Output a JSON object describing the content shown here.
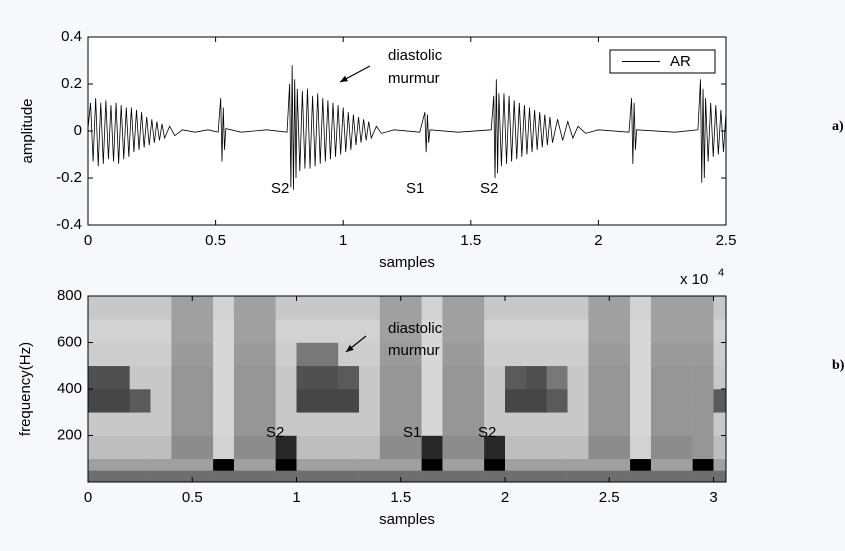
{
  "chart_data": [
    {
      "type": "line",
      "y_label": "amplitude",
      "x_label": "samples",
      "x_scale": {
        "base": "x 10",
        "exponent": "4"
      },
      "panel_label": "a)",
      "annotations": [
        "diastolic",
        "murmur",
        "S2",
        "S1",
        "S2"
      ],
      "legend": "upper right",
      "xlim": [
        0,
        2.5
      ],
      "xticks": [
        0,
        0.5,
        1,
        1.5,
        2,
        2.5
      ],
      "ylim": [
        -0.4,
        0.4
      ],
      "yticks": [
        -0.4,
        -0.2,
        0,
        0.2,
        0.4
      ],
      "x": [
        0,
        0.01,
        0.02,
        0.03,
        0.04,
        0.05,
        0.06,
        0.07,
        0.08,
        0.09,
        0.1,
        0.11,
        0.12,
        0.13,
        0.14,
        0.15,
        0.16,
        0.17,
        0.18,
        0.19,
        0.2,
        0.21,
        0.22,
        0.23,
        0.24,
        0.25,
        0.26,
        0.27,
        0.28,
        0.29,
        0.3,
        0.32,
        0.34,
        0.37,
        0.42,
        0.47,
        0.51,
        0.52,
        0.525,
        0.53,
        0.535,
        0.54,
        0.6,
        0.7,
        0.78,
        0.79,
        0.795,
        0.8,
        0.805,
        0.81,
        0.815,
        0.82,
        0.83,
        0.84,
        0.85,
        0.86,
        0.87,
        0.88,
        0.89,
        0.9,
        0.91,
        0.92,
        0.93,
        0.94,
        0.95,
        0.96,
        0.97,
        0.98,
        0.99,
        1.0,
        1.01,
        1.02,
        1.03,
        1.04,
        1.05,
        1.06,
        1.07,
        1.08,
        1.09,
        1.1,
        1.11,
        1.13,
        1.15,
        1.2,
        1.3,
        1.32,
        1.325,
        1.33,
        1.335,
        1.34,
        1.45,
        1.58,
        1.59,
        1.595,
        1.6,
        1.605,
        1.61,
        1.62,
        1.63,
        1.64,
        1.65,
        1.66,
        1.67,
        1.68,
        1.69,
        1.7,
        1.71,
        1.72,
        1.73,
        1.74,
        1.75,
        1.76,
        1.77,
        1.78,
        1.79,
        1.8,
        1.81,
        1.82,
        1.84,
        1.86,
        1.88,
        1.9,
        1.92,
        1.95,
        2.0,
        2.12,
        2.13,
        2.135,
        2.14,
        2.145,
        2.15,
        2.3,
        2.39,
        2.4,
        2.405,
        2.41,
        2.415,
        2.42,
        2.43,
        2.44,
        2.45,
        2.46,
        2.47,
        2.48,
        2.49,
        2.5
      ],
      "series": [
        {
          "name": "AR",
          "color": "#000000",
          "values": [
            0.01,
            0.12,
            -0.13,
            0.14,
            -0.15,
            0.12,
            -0.14,
            0.13,
            -0.12,
            0.11,
            -0.13,
            0.12,
            -0.14,
            0.11,
            -0.12,
            0.1,
            -0.11,
            0.1,
            -0.09,
            0.09,
            -0.08,
            0.08,
            -0.07,
            0.06,
            -0.06,
            0.05,
            -0.05,
            0.04,
            -0.04,
            0.03,
            -0.03,
            0.02,
            -0.02,
            0.005,
            -0.005,
            0.005,
            -0.005,
            0.14,
            -0.13,
            0.1,
            -0.08,
            0.01,
            -0.005,
            0.005,
            -0.005,
            0.2,
            -0.24,
            0.28,
            -0.25,
            0.22,
            -0.2,
            0.18,
            -0.17,
            0.17,
            -0.16,
            0.18,
            -0.16,
            0.15,
            -0.15,
            0.16,
            -0.14,
            0.14,
            -0.13,
            0.13,
            -0.12,
            0.12,
            -0.11,
            0.11,
            -0.1,
            0.1,
            -0.09,
            0.08,
            -0.08,
            0.07,
            -0.06,
            0.06,
            -0.05,
            0.05,
            -0.04,
            0.04,
            -0.03,
            0.02,
            -0.01,
            0.005,
            -0.005,
            0.08,
            -0.09,
            0.07,
            -0.05,
            0.005,
            -0.005,
            0.005,
            0.15,
            -0.2,
            0.22,
            -0.18,
            0.16,
            -0.15,
            0.16,
            -0.14,
            0.15,
            -0.13,
            0.13,
            -0.12,
            0.12,
            -0.11,
            0.11,
            -0.1,
            0.1,
            -0.09,
            0.09,
            -0.08,
            0.08,
            -0.07,
            0.07,
            -0.06,
            0.06,
            -0.05,
            0.05,
            -0.04,
            0.04,
            -0.03,
            0.02,
            -0.01,
            0.005,
            -0.005,
            0.14,
            -0.14,
            0.12,
            -0.08,
            0.005,
            -0.005,
            0.005,
            0.22,
            -0.22,
            0.18,
            -0.2,
            0.14,
            -0.13,
            0.12,
            -0.11,
            0.11,
            -0.1,
            0.09,
            -0.09,
            0.08
          ]
        }
      ]
    },
    {
      "type": "heatmap",
      "y_label": "frequency(Hz)",
      "x_label": "samples",
      "panel_label": "b)",
      "annotations": [
        "diastolic",
        "murmur",
        "S2",
        "S1",
        "S2"
      ],
      "colormap": "gray",
      "xlim": [
        0,
        3.06
      ],
      "xticks": [
        0,
        0.5,
        1,
        1.5,
        2,
        2.5,
        3
      ],
      "ylim": [
        0,
        800
      ],
      "yticks": [
        200,
        400,
        600,
        800
      ],
      "x_bins": [
        0,
        0.1,
        0.2,
        0.3,
        0.4,
        0.5,
        0.6,
        0.7,
        0.8,
        0.9,
        1.0,
        1.1,
        1.2,
        1.3,
        1.4,
        1.5,
        1.6,
        1.7,
        1.8,
        1.9,
        2.0,
        2.1,
        2.2,
        2.3,
        2.4,
        2.5,
        2.6,
        2.7,
        2.8,
        2.9,
        3.0,
        3.06
      ],
      "y_bins": [
        0,
        50,
        100,
        200,
        300,
        400,
        500,
        600,
        700,
        800
      ],
      "z": [
        [
          110,
          110,
          110,
          110,
          110,
          110,
          110,
          110,
          110,
          110,
          110,
          110,
          110,
          110,
          110,
          110,
          110,
          110,
          110,
          110,
          110,
          110,
          110,
          110,
          110,
          110,
          110,
          110,
          110,
          110,
          110
        ],
        [
          160,
          160,
          160,
          160,
          160,
          160,
          0,
          160,
          160,
          0,
          160,
          160,
          160,
          160,
          160,
          160,
          0,
          160,
          160,
          0,
          160,
          160,
          160,
          160,
          160,
          160,
          0,
          160,
          160,
          0,
          160
        ],
        [
          190,
          190,
          190,
          190,
          140,
          140,
          210,
          140,
          140,
          40,
          190,
          190,
          190,
          190,
          140,
          140,
          40,
          140,
          140,
          40,
          190,
          190,
          190,
          190,
          140,
          140,
          210,
          140,
          140,
          150,
          190
        ],
        [
          200,
          200,
          200,
          200,
          150,
          150,
          215,
          150,
          150,
          200,
          200,
          200,
          200,
          200,
          150,
          150,
          215,
          150,
          150,
          200,
          200,
          200,
          200,
          200,
          150,
          150,
          215,
          150,
          150,
          150,
          200
        ],
        [
          70,
          70,
          90,
          200,
          150,
          150,
          215,
          150,
          150,
          200,
          70,
          70,
          70,
          200,
          150,
          150,
          215,
          150,
          150,
          200,
          70,
          70,
          90,
          200,
          150,
          150,
          215,
          150,
          150,
          150,
          90
        ],
        [
          80,
          80,
          200,
          200,
          150,
          150,
          215,
          150,
          150,
          200,
          80,
          80,
          90,
          200,
          150,
          150,
          215,
          150,
          150,
          200,
          90,
          80,
          120,
          200,
          150,
          150,
          215,
          150,
          150,
          150,
          200
        ],
        [
          205,
          205,
          205,
          205,
          155,
          155,
          215,
          155,
          155,
          205,
          120,
          120,
          205,
          205,
          155,
          155,
          215,
          155,
          155,
          205,
          205,
          205,
          205,
          205,
          155,
          155,
          215,
          155,
          155,
          155,
          205
        ],
        [
          210,
          210,
          210,
          210,
          160,
          160,
          215,
          160,
          160,
          210,
          210,
          210,
          210,
          210,
          160,
          160,
          215,
          160,
          160,
          210,
          210,
          210,
          210,
          210,
          160,
          160,
          215,
          160,
          160,
          160,
          210
        ],
        [
          200,
          200,
          200,
          200,
          160,
          160,
          210,
          160,
          160,
          200,
          200,
          200,
          200,
          200,
          160,
          160,
          210,
          160,
          160,
          200,
          200,
          200,
          200,
          200,
          160,
          160,
          210,
          160,
          160,
          160,
          200
        ]
      ]
    }
  ]
}
